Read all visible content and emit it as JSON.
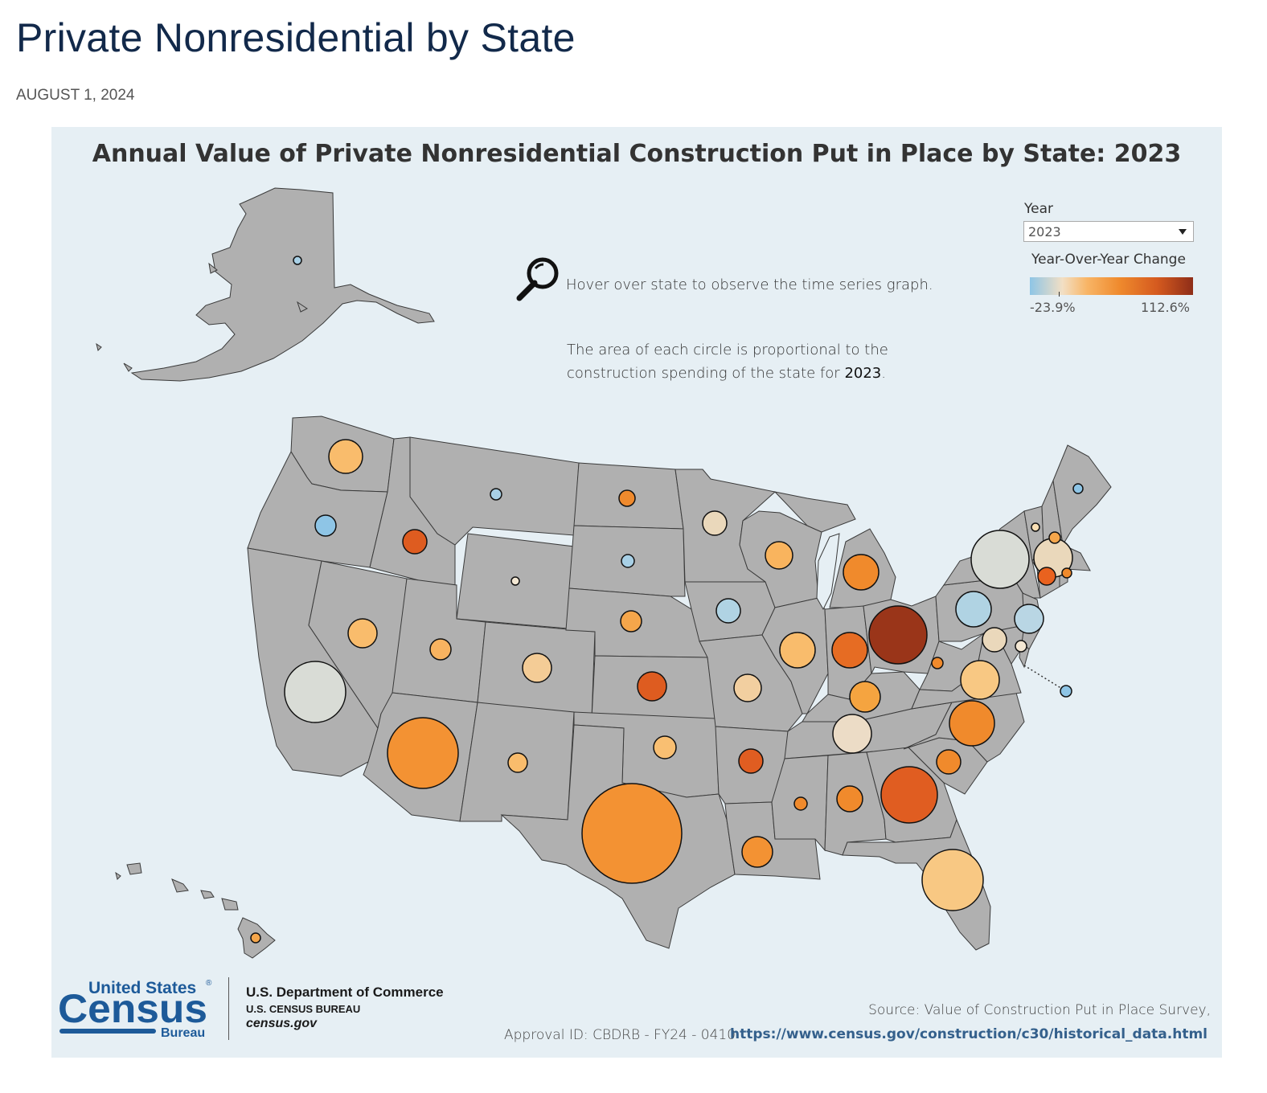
{
  "page": {
    "title": "Private Nonresidential by State",
    "date": "AUGUST 1, 2024"
  },
  "viz": {
    "title": "Annual Value of Private Nonresidential Construction Put in Place by State: 2023",
    "hover_text": "Hover over state to observe the time series graph.",
    "area_text_line1": "The area of each circle is  proportional to the",
    "area_text_line2": "construction spending of the state for ",
    "area_text_year": "2023",
    "area_text_end": ".",
    "icon": "magnifier-icon"
  },
  "controls": {
    "year_label": "Year",
    "year_value": "2023",
    "legend_title": "Year-Over-Year Change",
    "legend_min": "-23.9%",
    "legend_max": "112.6%",
    "legend_colors": [
      "#8ec5e6",
      "#f2dfc4",
      "#f8b566",
      "#ef8a2d",
      "#d55a1f",
      "#8e2d18"
    ]
  },
  "footer": {
    "logo_line1": "United States",
    "logo_reg": "®",
    "logo_line2": "Census",
    "logo_line3": "Bureau",
    "department": "U.S. Department of Commerce",
    "bureau": "U.S. CENSUS BUREAU",
    "website": "census.gov",
    "approval": "Approval ID: CBDRB - FY24 - 0410",
    "source": "Source: Value of Construction Put in Place Survey,",
    "source_link": "https://www.census.gov/construction/c30/historical_data.html"
  },
  "map_data": {
    "base_color": "#b0b0b0",
    "bubbles": [
      {
        "state": "AK",
        "color": "#a8d0e6",
        "size": "small"
      },
      {
        "state": "WA",
        "color": "#f9bc6c",
        "size": "medium"
      },
      {
        "state": "OR",
        "color": "#8ec5e6",
        "size": "small"
      },
      {
        "state": "CA",
        "color": "#d9dcd6",
        "size": "large"
      },
      {
        "state": "NV",
        "color": "#f9bc6c",
        "size": "small"
      },
      {
        "state": "ID",
        "color": "#de5c20",
        "size": "small"
      },
      {
        "state": "MT",
        "color": "#a8d0e6",
        "size": "tiny"
      },
      {
        "state": "WY",
        "color": "#f3e7d3",
        "size": "tiny"
      },
      {
        "state": "UT",
        "color": "#f8b360",
        "size": "small"
      },
      {
        "state": "AZ",
        "color": "#f39233",
        "size": "large"
      },
      {
        "state": "CO",
        "color": "#f4cc96",
        "size": "small"
      },
      {
        "state": "NM",
        "color": "#f9bc6c",
        "size": "small"
      },
      {
        "state": "ND",
        "color": "#ef8a2d",
        "size": "tiny"
      },
      {
        "state": "SD",
        "color": "#a8d0e6",
        "size": "tiny"
      },
      {
        "state": "NE",
        "color": "#f5a64b",
        "size": "small"
      },
      {
        "state": "KS",
        "color": "#de5c20",
        "size": "small"
      },
      {
        "state": "OK",
        "color": "#f9bf72",
        "size": "small"
      },
      {
        "state": "TX",
        "color": "#f39233",
        "size": "xlarge"
      },
      {
        "state": "MN",
        "color": "#ead8bb",
        "size": "small"
      },
      {
        "state": "IA",
        "color": "#b0d3e3",
        "size": "small"
      },
      {
        "state": "MO",
        "color": "#f2cfa0",
        "size": "small"
      },
      {
        "state": "AR",
        "color": "#e05d21",
        "size": "small"
      },
      {
        "state": "LA",
        "color": "#f39233",
        "size": "small"
      },
      {
        "state": "WI",
        "color": "#f9b45e",
        "size": "small"
      },
      {
        "state": "IL",
        "color": "#f9bc6c",
        "size": "medium"
      },
      {
        "state": "MI",
        "color": "#f08a2c",
        "size": "medium"
      },
      {
        "state": "IN",
        "color": "#e66c23",
        "size": "medium"
      },
      {
        "state": "OH",
        "color": "#9a3519",
        "size": "large"
      },
      {
        "state": "KY",
        "color": "#f5a440",
        "size": "small"
      },
      {
        "state": "TN",
        "color": "#ecdcc6",
        "size": "medium"
      },
      {
        "state": "MS",
        "color": "#f08a2c",
        "size": "tiny"
      },
      {
        "state": "AL",
        "color": "#f08a2c",
        "size": "small"
      },
      {
        "state": "GA",
        "color": "#e05d21",
        "size": "large"
      },
      {
        "state": "FL",
        "color": "#f8c883",
        "size": "large"
      },
      {
        "state": "SC",
        "color": "#f08a2c",
        "size": "small"
      },
      {
        "state": "NC",
        "color": "#f08a2c",
        "size": "medium"
      },
      {
        "state": "VA",
        "color": "#f8c883",
        "size": "medium"
      },
      {
        "state": "WV",
        "color": "#f08a2c",
        "size": "tiny"
      },
      {
        "state": "PA",
        "color": "#b0d3e3",
        "size": "medium"
      },
      {
        "state": "NY",
        "color": "#d9dcd6",
        "size": "large"
      },
      {
        "state": "NJ",
        "color": "#b9d6e4",
        "size": "small"
      },
      {
        "state": "MD",
        "color": "#ead8bb",
        "size": "small"
      },
      {
        "state": "DE",
        "color": "#f3e7d3",
        "size": "tiny"
      },
      {
        "state": "DC",
        "color": "#8ec5e6",
        "size": "tiny"
      },
      {
        "state": "VT",
        "color": "#f9dfb4",
        "size": "tiny"
      },
      {
        "state": "NH",
        "color": "#f5a64b",
        "size": "tiny"
      },
      {
        "state": "MA",
        "color": "#ead8bb",
        "size": "medium"
      },
      {
        "state": "CT",
        "color": "#e9621f",
        "size": "tiny"
      },
      {
        "state": "RI",
        "color": "#f08a2c",
        "size": "tiny"
      },
      {
        "state": "ME",
        "color": "#8ec5e6",
        "size": "tiny"
      },
      {
        "state": "HI",
        "color": "#f5a64b",
        "size": "tiny"
      }
    ]
  }
}
